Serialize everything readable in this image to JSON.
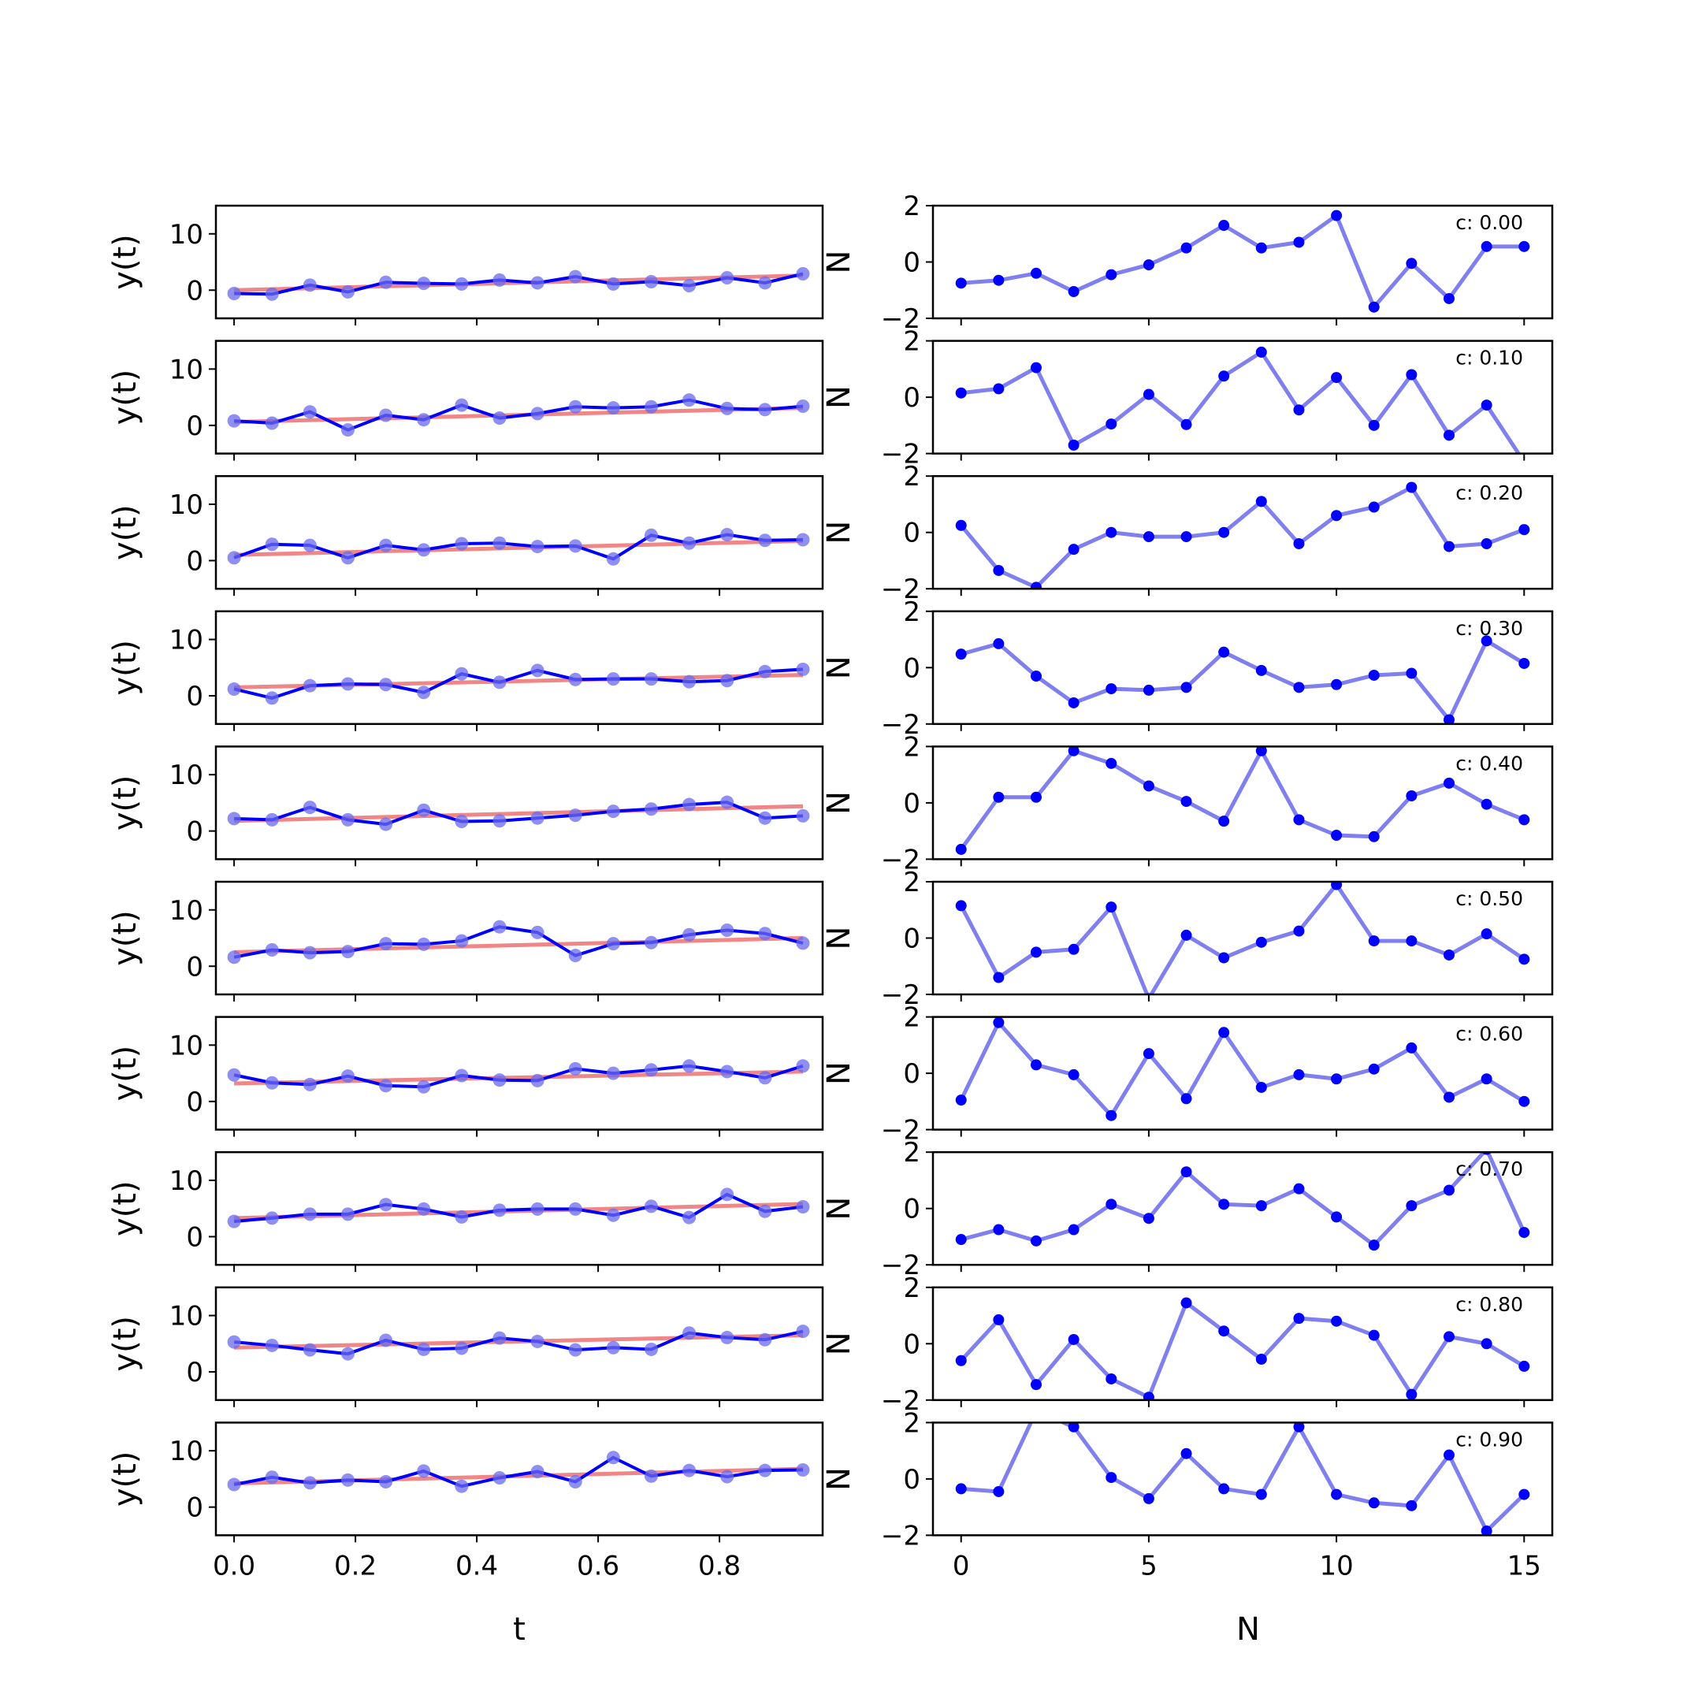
{
  "chart_data": [
    {
      "type": "line",
      "name": "left-column",
      "xlabel": "t",
      "ylabel": "y(t)",
      "xlim": [
        -0.03,
        0.97
      ],
      "ylim": [
        -5,
        15
      ],
      "xticks": [
        0.0,
        0.2,
        0.4,
        0.6,
        0.8
      ],
      "xtick_labels": [
        "0.0",
        "0.2",
        "0.4",
        "0.6",
        "0.8"
      ],
      "yticks": [
        0,
        10
      ],
      "ytick_labels": [
        "0",
        "10"
      ],
      "x": [
        0.0,
        0.0625,
        0.125,
        0.1875,
        0.25,
        0.3125,
        0.375,
        0.4375,
        0.5,
        0.5625,
        0.625,
        0.6875,
        0.75,
        0.8125,
        0.875,
        0.9375
      ],
      "colors": {
        "data": "#0000ff",
        "fit": "#f08080"
      },
      "panels": [
        {
          "values": [
            -0.6,
            -0.7,
            0.9,
            -0.3,
            1.4,
            1.2,
            1.1,
            1.8,
            1.3,
            2.4,
            1.1,
            1.5,
            0.8,
            2.2,
            1.3,
            2.9
          ],
          "fit": [
            0.0,
            2.6
          ]
        },
        {
          "values": [
            0.8,
            0.4,
            2.4,
            -0.8,
            1.8,
            1.0,
            3.6,
            1.3,
            2.1,
            3.3,
            3.1,
            3.3,
            4.5,
            3.0,
            2.8,
            3.4
          ],
          "fit": [
            0.6,
            3.1
          ]
        },
        {
          "values": [
            0.5,
            2.9,
            2.7,
            0.5,
            2.7,
            1.9,
            3.0,
            3.1,
            2.5,
            2.6,
            0.3,
            4.5,
            3.1,
            4.6,
            3.6,
            3.7
          ],
          "fit": [
            1.0,
            3.5
          ]
        },
        {
          "values": [
            1.2,
            -0.4,
            1.8,
            2.1,
            2.0,
            0.6,
            3.9,
            2.4,
            4.5,
            2.9,
            3.0,
            3.0,
            2.5,
            2.7,
            4.3,
            4.7
          ],
          "fit": [
            1.5,
            3.7
          ]
        },
        {
          "values": [
            2.2,
            2.0,
            4.2,
            2.0,
            1.2,
            3.7,
            1.7,
            1.8,
            2.3,
            2.8,
            3.5,
            3.9,
            4.7,
            5.1,
            2.3,
            2.7
          ],
          "fit": [
            1.8,
            4.4
          ]
        },
        {
          "values": [
            1.6,
            2.9,
            2.4,
            2.6,
            4.0,
            3.9,
            4.5,
            7.0,
            6.0,
            1.9,
            4.0,
            4.2,
            5.6,
            6.4,
            5.8,
            4.1
          ],
          "fit": [
            2.5,
            5.0
          ]
        },
        {
          "values": [
            4.7,
            3.3,
            3.0,
            4.5,
            2.8,
            2.6,
            4.6,
            3.8,
            3.7,
            5.8,
            5.0,
            5.6,
            6.3,
            5.3,
            4.2,
            6.3
          ],
          "fit": [
            3.2,
            5.3
          ]
        },
        {
          "values": [
            2.7,
            3.3,
            4.0,
            4.0,
            5.7,
            4.9,
            3.5,
            4.7,
            4.9,
            4.9,
            3.8,
            5.4,
            3.4,
            7.5,
            4.5,
            5.3
          ],
          "fit": [
            3.3,
            5.8
          ]
        },
        {
          "values": [
            5.3,
            4.7,
            3.9,
            3.2,
            5.6,
            4.0,
            4.2,
            6.0,
            5.4,
            3.9,
            4.3,
            4.0,
            6.9,
            6.1,
            5.7,
            7.2
          ],
          "fit": [
            4.3,
            6.5
          ]
        },
        {
          "values": [
            4.0,
            5.3,
            4.3,
            4.8,
            4.5,
            6.4,
            3.7,
            5.2,
            6.3,
            4.5,
            8.8,
            5.5,
            6.5,
            5.4,
            6.5,
            6.6
          ],
          "fit": [
            4.2,
            6.8
          ]
        }
      ]
    },
    {
      "type": "line",
      "name": "right-column",
      "xlabel": "N",
      "ylabel_glyph": "N",
      "xlim": [
        -0.75,
        15.75
      ],
      "ylim": [
        -2,
        2
      ],
      "xticks": [
        0,
        5,
        10,
        15
      ],
      "xtick_labels": [
        "0",
        "5",
        "10",
        "15"
      ],
      "yticks": [
        -2,
        0,
        2
      ],
      "ytick_labels": [
        "−2",
        "0",
        "2"
      ],
      "x": [
        0,
        1,
        2,
        3,
        4,
        5,
        6,
        7,
        8,
        9,
        10,
        11,
        12,
        13,
        14,
        15
      ],
      "colors": {
        "line": "#7f7ff0",
        "marker": "#0000ff"
      },
      "panels": [
        {
          "label": "c: 0.00",
          "values": [
            -0.75,
            -0.65,
            -0.4,
            -1.05,
            -0.45,
            -0.1,
            0.5,
            1.3,
            0.5,
            0.7,
            1.65,
            -1.6,
            -0.05,
            -1.3,
            0.55,
            0.55
          ]
        },
        {
          "label": "c: 0.10",
          "values": [
            0.15,
            0.3,
            1.05,
            -1.7,
            -0.95,
            0.1,
            -0.97,
            0.75,
            1.6,
            -0.45,
            0.7,
            -1.0,
            0.8,
            -1.35,
            -0.28,
            -2.3
          ]
        },
        {
          "label": "c: 0.20",
          "values": [
            0.25,
            -1.35,
            -1.95,
            -0.6,
            0.0,
            -0.15,
            -0.15,
            0.0,
            1.1,
            -0.4,
            0.6,
            0.9,
            1.6,
            -0.5,
            -0.4,
            0.1
          ]
        },
        {
          "label": "c: 0.30",
          "values": [
            0.48,
            0.85,
            -0.3,
            -1.25,
            -0.75,
            -0.8,
            -0.7,
            0.55,
            -0.1,
            -0.7,
            -0.6,
            -0.27,
            -0.2,
            -1.85,
            0.95,
            0.15
          ]
        },
        {
          "label": "c: 0.40",
          "values": [
            -1.65,
            0.2,
            0.2,
            1.85,
            1.4,
            0.6,
            0.05,
            -0.65,
            1.85,
            -0.6,
            -1.15,
            -1.2,
            0.25,
            0.7,
            -0.05,
            -0.6
          ]
        },
        {
          "label": "c: 0.50",
          "values": [
            1.15,
            -1.4,
            -0.5,
            -0.4,
            1.1,
            -2.15,
            0.1,
            -0.7,
            -0.15,
            0.25,
            1.9,
            -0.1,
            -0.1,
            -0.6,
            0.15,
            -0.75
          ]
        },
        {
          "label": "c: 0.60",
          "values": [
            -0.95,
            1.8,
            0.3,
            -0.05,
            -1.5,
            0.7,
            -0.9,
            1.45,
            -0.5,
            -0.05,
            -0.2,
            0.15,
            0.9,
            -0.85,
            -0.2,
            -1.0
          ]
        },
        {
          "label": "c: 0.70",
          "values": [
            -1.1,
            -0.75,
            -1.15,
            -0.75,
            0.15,
            -0.35,
            1.3,
            0.15,
            0.1,
            0.7,
            -0.3,
            -1.3,
            0.1,
            0.65,
            2.1,
            -0.85
          ]
        },
        {
          "label": "c: 0.80",
          "values": [
            -0.6,
            0.85,
            -1.45,
            0.15,
            -1.25,
            -1.9,
            1.45,
            0.45,
            -0.55,
            0.9,
            0.8,
            0.3,
            -1.8,
            0.25,
            0.0,
            -0.8
          ]
        },
        {
          "label": "c: 0.90",
          "values": [
            -0.35,
            -0.45,
            2.4,
            1.85,
            0.05,
            -0.7,
            0.9,
            -0.35,
            -0.55,
            1.85,
            -0.55,
            -0.85,
            -0.95,
            0.85,
            -1.85,
            -0.55
          ]
        }
      ]
    }
  ]
}
